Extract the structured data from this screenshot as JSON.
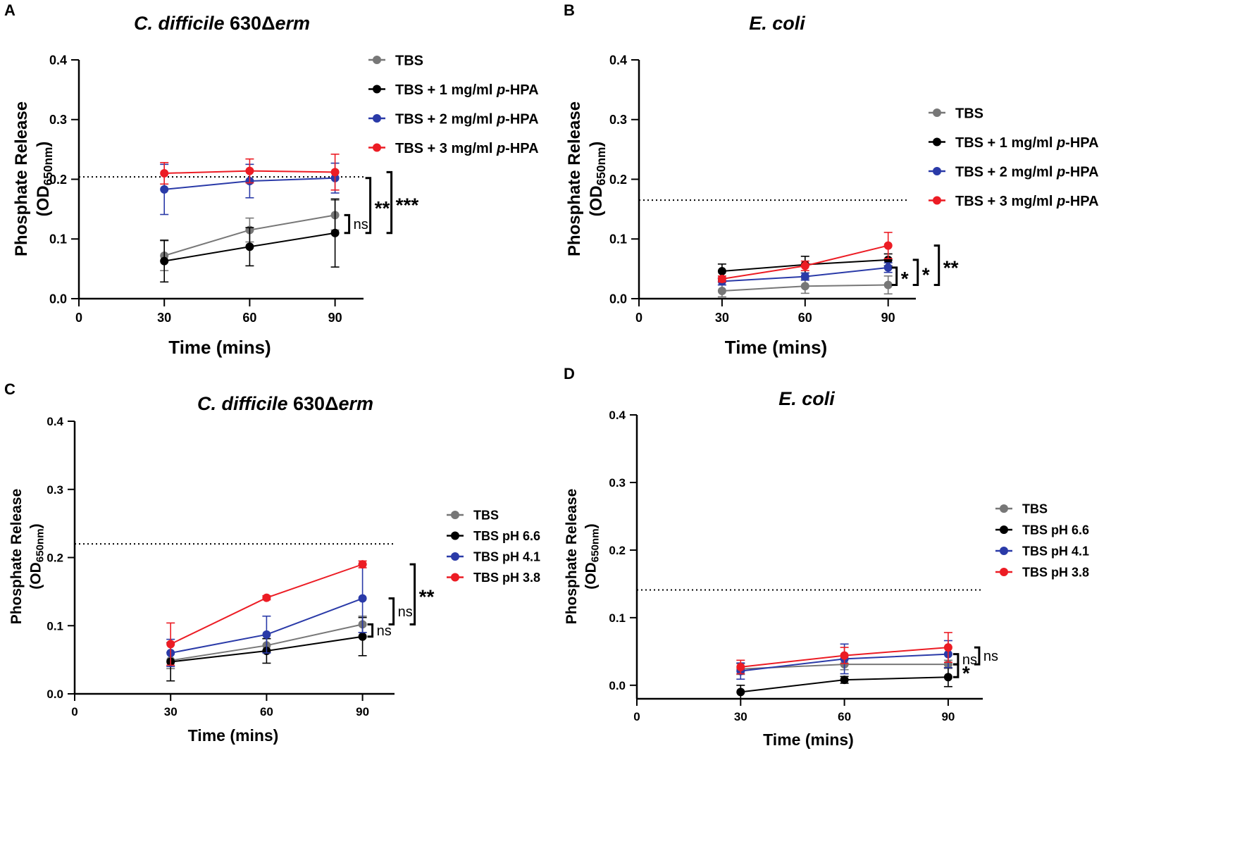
{
  "figure": {
    "x_axis_label": "Time (mins)",
    "y_axis_label": "Phosphate Release",
    "y_axis_unit": "(OD",
    "y_axis_unit_sub": "650nm",
    "y_axis_unit_close": ")"
  },
  "chart_data": [
    {
      "panel": "A",
      "type": "line",
      "title_italic": "C. difficile",
      "title_rest": " 630Δ",
      "title_italic_end": "erm",
      "xlabel": "Time (mins)",
      "ylabel": "Phosphate Release (OD650nm)",
      "xlim": [
        0,
        100
      ],
      "ylim": [
        0,
        0.4
      ],
      "xticks": [
        "0",
        "30",
        "60",
        "90"
      ],
      "yticks": [
        "0.0",
        "0.1",
        "0.2",
        "0.3",
        "0.4"
      ],
      "threshold": 0.204,
      "x": [
        30,
        60,
        90
      ],
      "series": [
        {
          "name": "TBS",
          "name_base": "TBS",
          "name_italic": "",
          "name_end": "",
          "color": "#777777",
          "values": [
            0.072,
            0.115,
            0.14
          ],
          "errors": [
            0.025,
            0.02,
            0.025
          ]
        },
        {
          "name": "TBS + 1 mg/ml p-HPA",
          "name_base": "TBS + 1 mg/ml ",
          "name_italic": "p",
          "name_end": "-HPA",
          "color": "#000000",
          "values": [
            0.063,
            0.087,
            0.11
          ],
          "errors": [
            0.035,
            0.032,
            0.057
          ]
        },
        {
          "name": "TBS + 2 mg/ml p-HPA",
          "name_base": "TBS + 2 mg/ml ",
          "name_italic": "p",
          "name_end": "-HPA",
          "color": "#2a3aa8",
          "values": [
            0.183,
            0.197,
            0.202
          ],
          "errors": [
            0.042,
            0.028,
            0.025
          ]
        },
        {
          "name": "TBS + 3 mg/ml p-HPA",
          "name_base": "TBS + 3 mg/ml ",
          "name_italic": "p",
          "name_end": "-HPA",
          "color": "#ec1c24",
          "values": [
            0.21,
            0.214,
            0.212
          ],
          "errors": [
            0.018,
            0.02,
            0.03
          ]
        }
      ],
      "significance": [
        "ns",
        "**",
        "***"
      ]
    },
    {
      "panel": "B",
      "type": "line",
      "title_italic": "E. coli",
      "title_rest": "",
      "title_italic_end": "",
      "xlabel": "Time (mins)",
      "ylabel": "Phosphate Release (OD650nm)",
      "xlim": [
        0,
        100
      ],
      "ylim": [
        0,
        0.4
      ],
      "xticks": [
        "0",
        "30",
        "60",
        "90"
      ],
      "yticks": [
        "0.0",
        "0.1",
        "0.2",
        "0.3",
        "0.4"
      ],
      "threshold": 0.165,
      "x": [
        30,
        60,
        90
      ],
      "series": [
        {
          "name": "TBS",
          "name_base": "TBS",
          "name_italic": "",
          "name_end": "",
          "color": "#777777",
          "values": [
            0.013,
            0.021,
            0.023
          ],
          "errors": [
            0.01,
            0.012,
            0.015
          ]
        },
        {
          "name": "TBS + 1 mg/ml p-HPA",
          "name_base": "TBS + 1 mg/ml ",
          "name_italic": "p",
          "name_end": "-HPA",
          "color": "#000000",
          "values": [
            0.046,
            0.057,
            0.065
          ],
          "errors": [
            0.012,
            0.014,
            0.01
          ]
        },
        {
          "name": "TBS + 2 mg/ml p-HPA",
          "name_base": "TBS + 2 mg/ml ",
          "name_italic": "p",
          "name_end": "-HPA",
          "color": "#2a3aa8",
          "values": [
            0.029,
            0.037,
            0.052
          ],
          "errors": [
            0.006,
            0.006,
            0.008
          ]
        },
        {
          "name": "TBS + 3 mg/ml p-HPA",
          "name_base": "TBS + 3 mg/ml ",
          "name_italic": "p",
          "name_end": "-HPA",
          "color": "#ec1c24",
          "values": [
            0.033,
            0.055,
            0.089
          ],
          "errors": [
            0.005,
            0.008,
            0.022
          ]
        }
      ],
      "significance": [
        "*",
        "*",
        "**"
      ]
    },
    {
      "panel": "C",
      "type": "line",
      "title_italic": "C. difficile",
      "title_rest": " 630Δ",
      "title_italic_end": "erm",
      "xlabel": "Time (mins)",
      "ylabel": "Phosphate Release (OD650nm)",
      "xlim": [
        0,
        100
      ],
      "ylim": [
        0,
        0.4
      ],
      "xticks": [
        "0",
        "30",
        "60",
        "90"
      ],
      "yticks": [
        "0.0",
        "0.1",
        "0.2",
        "0.3",
        "0.4"
      ],
      "threshold": 0.22,
      "x": [
        30,
        60,
        90
      ],
      "series": [
        {
          "name": "TBS",
          "name_base": "TBS",
          "name_italic": "",
          "name_end": "",
          "color": "#777777",
          "values": [
            0.049,
            0.071,
            0.102
          ],
          "errors": [
            0.012,
            0.01,
            0.012
          ]
        },
        {
          "name": "TBS pH 6.6",
          "name_base": "TBS pH 6.6",
          "name_italic": "",
          "name_end": "",
          "color": "#000000",
          "values": [
            0.047,
            0.063,
            0.084
          ],
          "errors": [
            0.028,
            0.018,
            0.028
          ]
        },
        {
          "name": "TBS pH 4.1",
          "name_base": "TBS pH 4.1",
          "name_italic": "",
          "name_end": "",
          "color": "#2a3aa8",
          "values": [
            0.06,
            0.087,
            0.14
          ],
          "errors": [
            0.02,
            0.027,
            0.05
          ]
        },
        {
          "name": "TBS pH 3.8",
          "name_base": "TBS pH 3.8",
          "name_italic": "",
          "name_end": "",
          "color": "#ec1c24",
          "values": [
            0.073,
            0.141,
            0.19
          ],
          "errors": [
            0.031,
            0.003,
            0.005
          ]
        }
      ],
      "significance": [
        "ns",
        "ns",
        "**"
      ]
    },
    {
      "panel": "D",
      "type": "line",
      "title_italic": "E. coli",
      "title_rest": "",
      "title_italic_end": "",
      "xlabel": "Time (mins)",
      "ylabel": "Phosphate Release (OD650nm)",
      "xlim": [
        0,
        100
      ],
      "ylim": [
        -0.02,
        0.4
      ],
      "xticks": [
        "0",
        "30",
        "60",
        "90"
      ],
      "yticks": [
        "0.0",
        "0.1",
        "0.2",
        "0.3",
        "0.4"
      ],
      "threshold": 0.141,
      "x": [
        30,
        60,
        90
      ],
      "series": [
        {
          "name": "TBS",
          "name_base": "TBS",
          "name_italic": "",
          "name_end": "",
          "color": "#777777",
          "values": [
            0.024,
            0.031,
            0.031
          ],
          "errors": [
            0.008,
            0.008,
            0.006
          ]
        },
        {
          "name": "TBS pH 6.6",
          "name_base": "TBS pH 6.6",
          "name_italic": "",
          "name_end": "",
          "color": "#000000",
          "values": [
            -0.01,
            0.008,
            0.012
          ],
          "errors": [
            0.01,
            0.005,
            0.014
          ]
        },
        {
          "name": "TBS pH 4.1",
          "name_base": "TBS pH 4.1",
          "name_italic": "",
          "name_end": "",
          "color": "#2a3aa8",
          "values": [
            0.021,
            0.039,
            0.046
          ],
          "errors": [
            0.012,
            0.022,
            0.02
          ]
        },
        {
          "name": "TBS pH 3.8",
          "name_base": "TBS pH 3.8",
          "name_italic": "",
          "name_end": "",
          "color": "#ec1c24",
          "values": [
            0.027,
            0.044,
            0.056
          ],
          "errors": [
            0.01,
            0.012,
            0.022
          ]
        }
      ],
      "significance": [
        "*",
        "ns",
        "ns"
      ]
    }
  ]
}
